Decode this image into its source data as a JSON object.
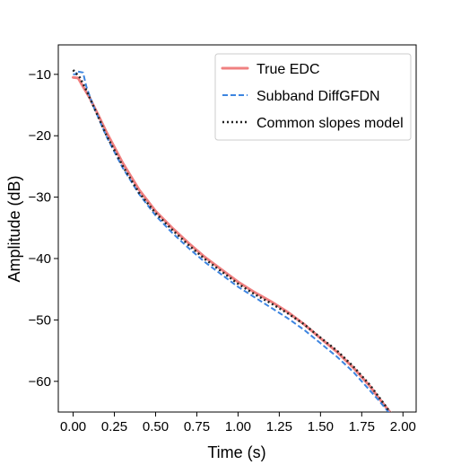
{
  "chart_data": {
    "type": "line",
    "xlabel": "Time (s)",
    "ylabel": "Amplitude (dB)",
    "xlim": [
      -0.09,
      2.08
    ],
    "ylim": [
      -65,
      -5.2
    ],
    "xticks": [
      0.0,
      0.25,
      0.5,
      0.75,
      1.0,
      1.25,
      1.5,
      1.75,
      2.0
    ],
    "xtick_labels": [
      "0.00",
      "0.25",
      "0.50",
      "0.75",
      "1.00",
      "1.25",
      "1.50",
      "1.75",
      "2.00"
    ],
    "yticks": [
      -10,
      -20,
      -30,
      -40,
      -50,
      -60
    ],
    "ytick_labels": [
      "−10",
      "−20",
      "−30",
      "−40",
      "−50",
      "−60"
    ],
    "grid": false,
    "legend_position": "top-right",
    "series": [
      {
        "name": "True EDC",
        "color": "#f08080",
        "style": "solid",
        "x": [
          0.0,
          0.03,
          0.06,
          0.1,
          0.15,
          0.2,
          0.3,
          0.4,
          0.5,
          0.6,
          0.7,
          0.8,
          0.9,
          1.0,
          1.1,
          1.2,
          1.3,
          1.4,
          1.5,
          1.6,
          1.7,
          1.8,
          1.85,
          1.9,
          1.93
        ],
        "y": [
          -10.5,
          -10.6,
          -12.0,
          -13.8,
          -16.5,
          -19.3,
          -24.4,
          -28.8,
          -32.3,
          -35.0,
          -37.5,
          -39.8,
          -41.8,
          -43.8,
          -45.5,
          -47.0,
          -48.7,
          -50.7,
          -53.0,
          -55.2,
          -57.8,
          -60.8,
          -62.6,
          -64.3,
          -65.3
        ]
      },
      {
        "name": "Subband DiffGFDN",
        "color": "#3d85e0",
        "style": "dashed",
        "x": [
          0.0,
          0.02,
          0.02,
          0.06,
          0.08,
          0.12,
          0.2,
          0.3,
          0.4,
          0.5,
          0.6,
          0.7,
          0.8,
          0.9,
          1.0,
          1.1,
          1.2,
          1.3,
          1.4,
          1.5,
          1.6,
          1.7,
          1.8,
          1.85,
          1.9,
          1.93
        ],
        "y": [
          -10.0,
          -10.0,
          -9.5,
          -9.7,
          -12.0,
          -15.0,
          -20.0,
          -25.2,
          -29.5,
          -33.0,
          -35.8,
          -38.3,
          -40.6,
          -42.6,
          -44.6,
          -46.3,
          -48.0,
          -49.7,
          -51.6,
          -53.8,
          -56.0,
          -58.5,
          -61.5,
          -63.0,
          -64.6,
          -65.5
        ]
      },
      {
        "name": "Common slopes model",
        "color": "#222222",
        "style": "dotted",
        "x": [
          0.0,
          0.04,
          0.08,
          0.12,
          0.16,
          0.2,
          0.3,
          0.4,
          0.5,
          0.6,
          0.7,
          0.8,
          0.9,
          1.0,
          1.1,
          1.2,
          1.3,
          1.4,
          1.5,
          1.6,
          1.7,
          1.8,
          1.85,
          1.9,
          1.93
        ],
        "y": [
          -9.3,
          -10.5,
          -12.6,
          -15.0,
          -17.4,
          -19.8,
          -24.9,
          -29.3,
          -32.6,
          -35.3,
          -37.8,
          -40.1,
          -42.1,
          -44.1,
          -45.8,
          -47.3,
          -48.9,
          -50.7,
          -52.9,
          -55.0,
          -57.6,
          -60.6,
          -62.4,
          -64.2,
          -65.4
        ]
      }
    ]
  }
}
